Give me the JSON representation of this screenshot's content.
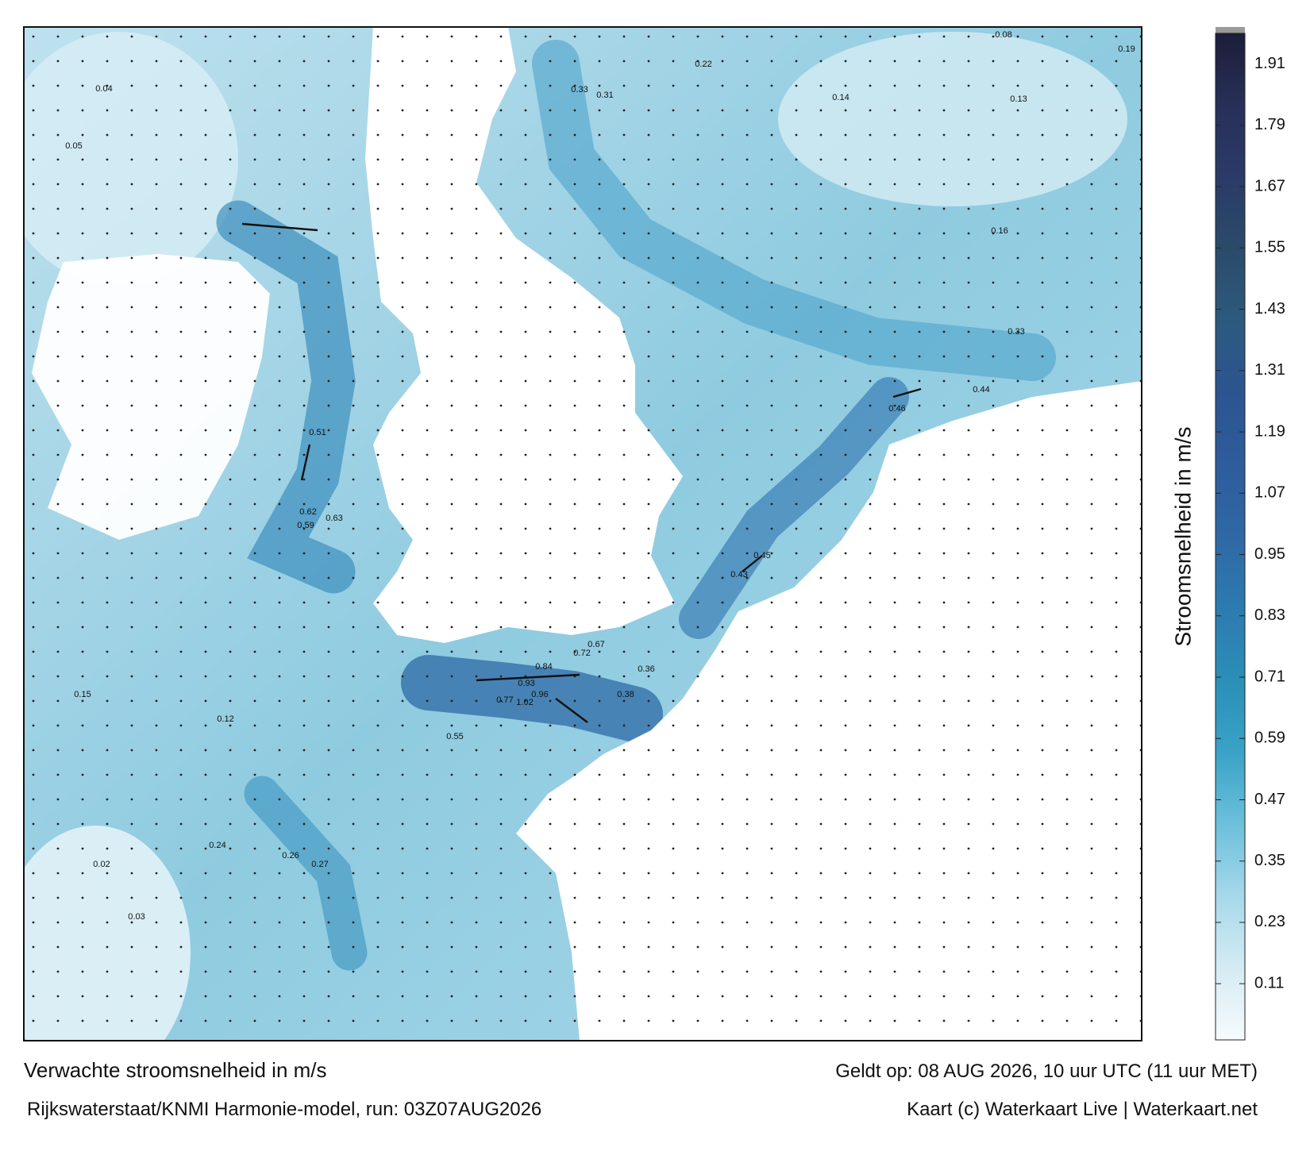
{
  "map": {
    "labels": [
      0.84,
      0.93,
      0.96,
      1.02,
      0.77,
      0.63,
      0.62,
      0.59,
      0.51,
      0.46,
      0.44,
      0.33,
      0.36,
      0.38,
      0.72,
      0.67,
      0.55,
      0.27,
      0.26,
      0.24,
      0.31,
      0.33,
      0.22,
      0.16,
      0.13,
      0.08,
      0.19,
      0.05,
      0.04,
      0.03,
      0.02,
      0.15,
      0.12,
      0.14,
      0.45,
      0.43
    ]
  },
  "colorbar": {
    "label": "Stroomsnelheid in m/s",
    "lim": [
      0,
      1.97
    ],
    "ticks": [
      0.11,
      0.23,
      0.35,
      0.47,
      0.59,
      0.71,
      0.83,
      0.95,
      1.07,
      1.19,
      1.31,
      1.43,
      1.55,
      1.67,
      1.79,
      1.91
    ],
    "colors": [
      "#f6fbfd",
      "#d4ebf4",
      "#a6d8ea",
      "#6cc0dc",
      "#3aa2c7",
      "#2b8fb8",
      "#2c7bb0",
      "#2f68a6",
      "#2e5c9c",
      "#2c5491",
      "#2c5a7e",
      "#2b4b6a",
      "#2a3b68",
      "#273058",
      "#1c1e3a"
    ]
  },
  "footer": {
    "title": "Verwachte stroomsnelheid in m/s",
    "valid": "Geldt op: 08 AUG 2026, 10 uur UTC (11 uur MET)",
    "model": "Rijkswaterstaat/KNMI Harmonie-model, run: 03Z07AUG2026",
    "credit": "Kaart (c) Waterkaart Live | Waterkaart.net"
  }
}
